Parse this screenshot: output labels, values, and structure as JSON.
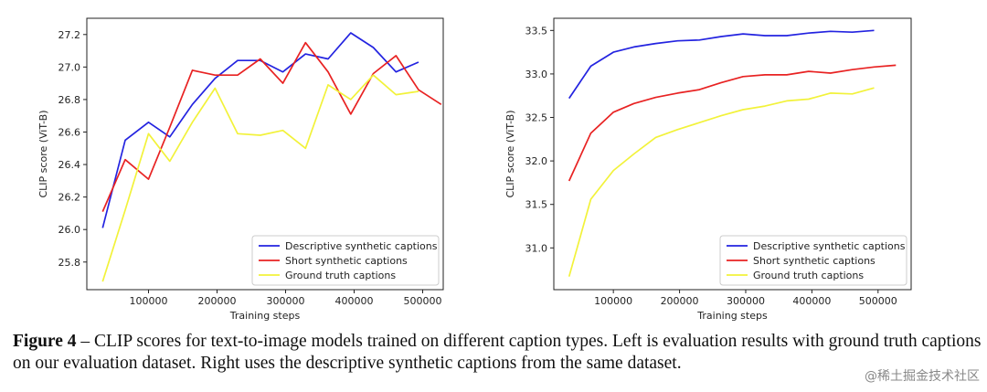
{
  "caption": {
    "figure_label": "Figure 4",
    "text": " – CLIP scores for text-to-image models trained on different caption types. Left is evaluation results with ground truth captions on our evaluation dataset. Right uses the descriptive synthetic captions from the same dataset."
  },
  "watermark": "@稀土掘金技术社区",
  "chart_data": [
    {
      "type": "line",
      "xlabel": "Training steps",
      "ylabel": "CLIP score (ViT-B)",
      "xlim": [
        10000,
        530000
      ],
      "ylim": [
        25.63,
        27.3
      ],
      "xticks": [
        100000,
        200000,
        300000,
        400000,
        500000
      ],
      "yticks": [
        25.8,
        26.0,
        26.2,
        26.4,
        26.6,
        26.8,
        27.0,
        27.2
      ],
      "legend_position": "lower-right",
      "series": [
        {
          "name": "Descriptive synthetic captions",
          "color": "#2323e0",
          "x": [
            33000,
            66000,
            100000,
            131000,
            164000,
            197000,
            230000,
            263000,
            296000,
            329000,
            362000,
            395000,
            428000,
            461000,
            494000
          ],
          "y": [
            26.01,
            26.55,
            26.66,
            26.57,
            26.77,
            26.93,
            27.04,
            27.04,
            26.97,
            27.08,
            27.05,
            27.21,
            27.12,
            26.97,
            27.03
          ]
        },
        {
          "name": "Short synthetic captions",
          "color": "#e82222",
          "x": [
            33000,
            66000,
            100000,
            131000,
            164000,
            197000,
            230000,
            263000,
            296000,
            329000,
            362000,
            395000,
            428000,
            461000,
            494000,
            527000
          ],
          "y": [
            26.11,
            26.43,
            26.31,
            26.63,
            26.98,
            26.95,
            26.95,
            27.05,
            26.9,
            27.15,
            26.97,
            26.71,
            26.96,
            27.07,
            26.86,
            26.77
          ]
        },
        {
          "name": "Ground truth captions",
          "color": "#f2f23a",
          "x": [
            33000,
            66000,
            100000,
            131000,
            164000,
            197000,
            230000,
            263000,
            296000,
            329000,
            362000,
            395000,
            428000,
            461000,
            494000
          ],
          "y": [
            25.68,
            26.12,
            26.59,
            26.42,
            26.66,
            26.87,
            26.59,
            26.58,
            26.61,
            26.5,
            26.89,
            26.8,
            26.95,
            26.83,
            26.85
          ]
        }
      ]
    },
    {
      "type": "line",
      "xlabel": "Training steps",
      "ylabel": "CLIP score (ViT-B)",
      "xlim": [
        10000,
        550000
      ],
      "ylim": [
        30.52,
        33.64
      ],
      "xticks": [
        100000,
        200000,
        300000,
        400000,
        500000
      ],
      "yticks": [
        31.0,
        31.5,
        32.0,
        32.5,
        33.0,
        33.5
      ],
      "ytick_labels": [
        "31.0",
        "31.5",
        "32.0",
        "32.5",
        "33.0",
        "33.5"
      ],
      "legend_position": "lower-right",
      "series": [
        {
          "name": "Descriptive synthetic captions",
          "color": "#2323e0",
          "x": [
            33000,
            66000,
            100000,
            131000,
            164000,
            197000,
            230000,
            263000,
            296000,
            329000,
            362000,
            395000,
            428000,
            461000,
            494000
          ],
          "y": [
            32.72,
            33.09,
            33.25,
            33.31,
            33.35,
            33.38,
            33.39,
            33.43,
            33.46,
            33.44,
            33.44,
            33.47,
            33.49,
            33.48,
            33.5
          ]
        },
        {
          "name": "Short synthetic captions",
          "color": "#e82222",
          "x": [
            33000,
            66000,
            100000,
            131000,
            164000,
            197000,
            230000,
            263000,
            296000,
            329000,
            362000,
            395000,
            428000,
            461000,
            494000,
            527000
          ],
          "y": [
            31.77,
            32.32,
            32.56,
            32.66,
            32.73,
            32.78,
            32.82,
            32.9,
            32.97,
            32.99,
            32.99,
            33.03,
            33.01,
            33.05,
            33.08,
            33.1
          ]
        },
        {
          "name": "Ground truth captions",
          "color": "#f2f23a",
          "x": [
            33000,
            66000,
            100000,
            131000,
            164000,
            197000,
            230000,
            263000,
            296000,
            329000,
            362000,
            395000,
            428000,
            461000,
            494000
          ],
          "y": [
            30.67,
            31.56,
            31.89,
            32.08,
            32.27,
            32.36,
            32.44,
            32.52,
            32.59,
            32.63,
            32.69,
            32.71,
            32.78,
            32.77,
            32.84
          ]
        }
      ]
    }
  ]
}
